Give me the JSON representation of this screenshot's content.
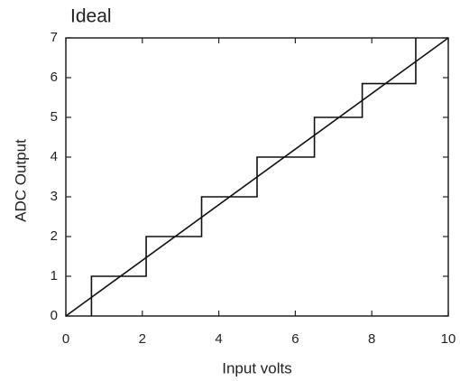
{
  "chart_data": {
    "type": "line",
    "title": "Ideal",
    "x_label": "Input volts",
    "y_label": "ADC Output",
    "xlim": [
      0,
      10
    ],
    "ylim": [
      0,
      7
    ],
    "xticks": [
      0,
      2,
      4,
      6,
      8,
      10
    ],
    "yticks": [
      0,
      1,
      2,
      3,
      4,
      5,
      6,
      7
    ],
    "series": [
      {
        "color": "#111111",
        "x": [
          0.67,
          0.67,
          2.1,
          2.1,
          3.55,
          3.55,
          5,
          5,
          6.5,
          6.5,
          7.75,
          7.75,
          9.15,
          9.15
        ],
        "values": [
          0,
          1,
          1,
          2,
          2,
          3,
          3,
          4,
          4,
          5,
          5,
          5.85,
          5.85,
          7
        ]
      },
      {
        "color": "#111111",
        "x": [
          0,
          10
        ],
        "values": [
          0,
          7
        ]
      }
    ]
  }
}
